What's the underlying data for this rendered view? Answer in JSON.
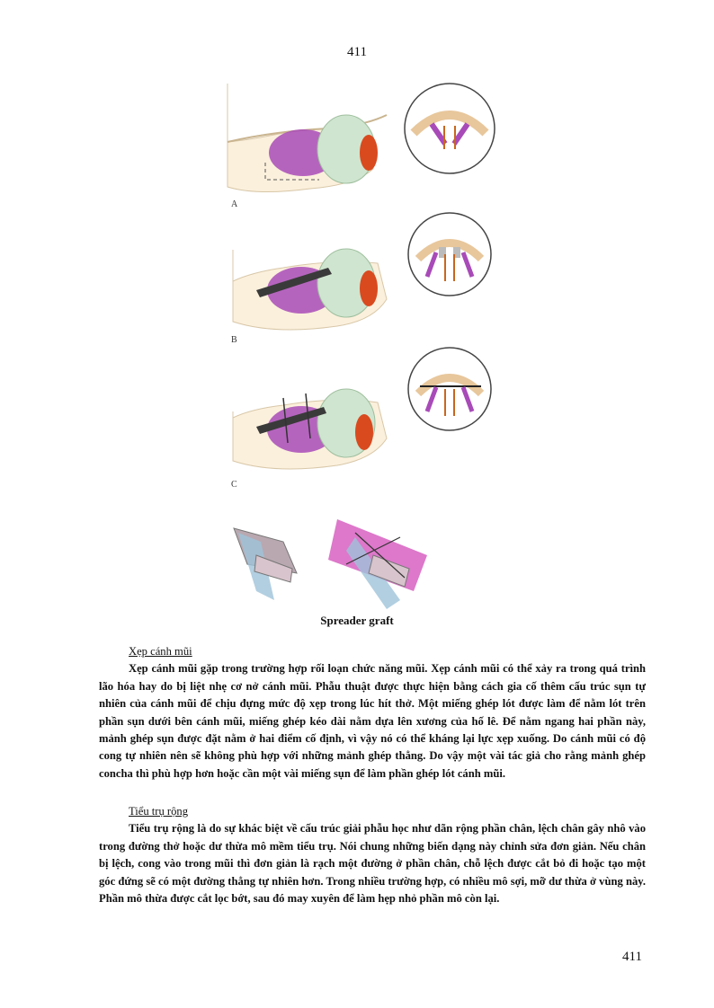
{
  "page": {
    "number_top": "411",
    "number_bottom": "411"
  },
  "figure": {
    "panel_labels": [
      "A",
      "B",
      "C"
    ],
    "caption": "Spreader graft"
  },
  "section1": {
    "heading": "Xẹp cánh mũi",
    "body": "Xẹp cánh mũi gặp trong trường hợp rối loạn chức năng mũi. Xẹp cánh mũi có thể xảy ra trong quá trình lão hóa hay do bị liệt nhẹ cơ nở cánh mũi. Phẫu thuật được thực hiện bằng cách gia cố thêm cấu trúc sụn tự nhiên của cánh mũi để chịu đựng mức độ xẹp trong lúc hít thở. Một miếng ghép lót được làm để nằm lót trên phần sụn dưới bên cánh mũi, miếng ghép kéo dài nằm dựa lên xương của hố lê. Để nằm ngang hai phần này, mảnh ghép sụn được đặt nằm ở hai điểm cố định, vì vậy nó có thể kháng lại lực xẹp xuống. Do cánh mũi có độ cong tự nhiên nên sẽ không phù hợp với những mảnh ghép thẳng. Do vậy một vài tác giả cho rằng mảnh ghép concha thì phù hợp hơn hoặc cần một vài miếng sụn để làm phần ghép lót cánh mũi."
  },
  "section2": {
    "heading": "Tiểu trụ rộng",
    "body": "Tiểu trụ rộng là do sự khác biệt về cấu trúc giải phẫu học như dãn rộng phần chân, lệch chân gây nhô vào trong đường thở hoặc dư thừa mô mềm tiểu trụ. Nói chung những biến dạng này chỉnh sửa đơn giản. Nếu chân bị lệch, cong vào trong mũi thì đơn giản là rạch một đường ở phần chân, chỗ lệch được cắt bỏ đi hoặc tạo một góc đứng sẽ có một đường thẳng tự nhiên hơn. Trong nhiều trường hợp, có nhiều mô sợi, mỡ dư thừa ở vùng này. Phần mô thừa được cắt lọc bớt, sau đó may xuyên để làm hẹp nhỏ phần mô còn lại."
  }
}
